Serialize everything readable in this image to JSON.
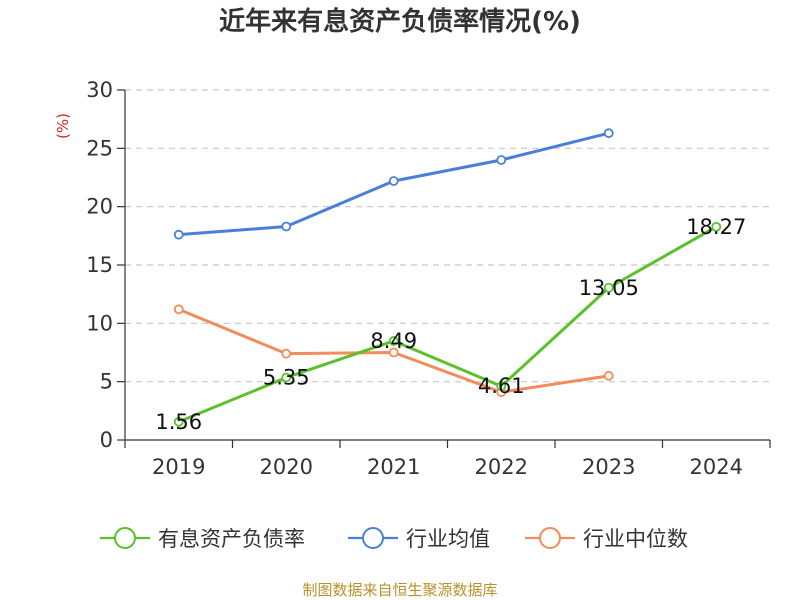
{
  "chart_data": {
    "type": "line",
    "title": "近年来有息资产负债率情况(%)",
    "ylabel": "(%)",
    "xlabel": "",
    "categories": [
      "2019",
      "2020",
      "2021",
      "2022",
      "2023",
      "2024"
    ],
    "ylim": [
      0,
      30
    ],
    "yticks": [
      0,
      5,
      10,
      15,
      20,
      25,
      30
    ],
    "grid": true,
    "legend_position": "bottom",
    "series": [
      {
        "name": "有息资产负债率",
        "color": "#5ac12b",
        "values": [
          1.56,
          5.35,
          8.49,
          4.61,
          13.05,
          18.27
        ],
        "labels": [
          "1.56",
          "5.35",
          "8.49",
          "4.61",
          "13.05",
          "18.27"
        ]
      },
      {
        "name": "行业均值",
        "color": "#4a7fd8",
        "values": [
          17.6,
          18.3,
          22.2,
          24.0,
          26.3,
          null
        ]
      },
      {
        "name": "行业中位数",
        "color": "#f28c5a",
        "values": [
          11.2,
          7.4,
          7.5,
          4.1,
          5.5,
          null
        ]
      }
    ]
  },
  "footer": "制图数据来自恒生聚源数据库"
}
